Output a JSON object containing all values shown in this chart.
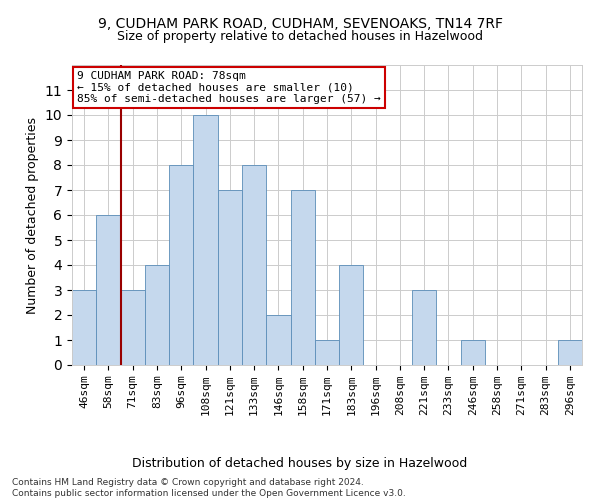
{
  "title": "9, CUDHAM PARK ROAD, CUDHAM, SEVENOAKS, TN14 7RF",
  "subtitle": "Size of property relative to detached houses in Hazelwood",
  "xlabel": "Distribution of detached houses by size in Hazelwood",
  "ylabel": "Number of detached properties",
  "categories": [
    "46sqm",
    "58sqm",
    "71sqm",
    "83sqm",
    "96sqm",
    "108sqm",
    "121sqm",
    "133sqm",
    "146sqm",
    "158sqm",
    "171sqm",
    "183sqm",
    "196sqm",
    "208sqm",
    "221sqm",
    "233sqm",
    "246sqm",
    "258sqm",
    "271sqm",
    "283sqm",
    "296sqm"
  ],
  "values": [
    3,
    6,
    3,
    4,
    8,
    10,
    7,
    8,
    2,
    7,
    1,
    4,
    0,
    0,
    3,
    0,
    1,
    0,
    0,
    0,
    1
  ],
  "bar_color": "#c5d8ed",
  "bar_edgecolor": "#5b8db8",
  "annotation_text": "9 CUDHAM PARK ROAD: 78sqm\n← 15% of detached houses are smaller (10)\n85% of semi-detached houses are larger (57) →",
  "annotation_box_color": "#ffffff",
  "annotation_box_edgecolor": "#cc0000",
  "ylim": [
    0,
    12
  ],
  "yticks": [
    0,
    1,
    2,
    3,
    4,
    5,
    6,
    7,
    8,
    9,
    10,
    11
  ],
  "footer": "Contains HM Land Registry data © Crown copyright and database right 2024.\nContains public sector information licensed under the Open Government Licence v3.0.",
  "vline_color": "#990000",
  "vline_x": 1.5,
  "background_color": "#ffffff",
  "grid_color": "#cccccc"
}
